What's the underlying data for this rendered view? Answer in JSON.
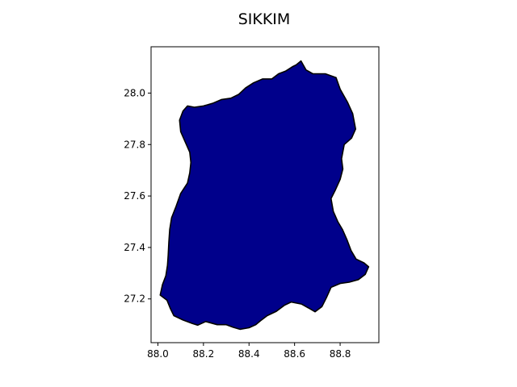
{
  "chart_data": {
    "type": "map",
    "title": "SIKKIM",
    "xlabel": "",
    "ylabel": "",
    "xlim": [
      87.97,
      88.97
    ],
    "ylim": [
      27.03,
      28.18
    ],
    "x_ticks": [
      88.0,
      88.2,
      88.4,
      88.6,
      88.8
    ],
    "x_tick_labels": [
      "88.0",
      "88.2",
      "88.4",
      "88.6",
      "88.8"
    ],
    "y_ticks": [
      27.2,
      27.4,
      27.6,
      27.8,
      28.0
    ],
    "y_tick_labels": [
      "27.2",
      "27.4",
      "27.6",
      "27.8",
      "28.0"
    ],
    "grid": false,
    "region": {
      "fill_color": "#00008b",
      "edge_color": "#000000",
      "boundary_lonlat": [
        [
          88.01,
          27.215
        ],
        [
          88.04,
          27.195
        ],
        [
          88.055,
          27.162
        ],
        [
          88.07,
          27.135
        ],
        [
          88.11,
          27.118
        ],
        [
          88.15,
          27.105
        ],
        [
          88.175,
          27.098
        ],
        [
          88.21,
          27.112
        ],
        [
          88.26,
          27.1
        ],
        [
          88.3,
          27.1
        ],
        [
          88.33,
          27.09
        ],
        [
          88.36,
          27.082
        ],
        [
          88.4,
          27.088
        ],
        [
          88.43,
          27.1
        ],
        [
          88.45,
          27.115
        ],
        [
          88.48,
          27.135
        ],
        [
          88.52,
          27.152
        ],
        [
          88.555,
          27.175
        ],
        [
          88.585,
          27.188
        ],
        [
          88.63,
          27.18
        ],
        [
          88.665,
          27.163
        ],
        [
          88.69,
          27.15
        ],
        [
          88.72,
          27.17
        ],
        [
          88.74,
          27.205
        ],
        [
          88.76,
          27.245
        ],
        [
          88.8,
          27.26
        ],
        [
          88.84,
          27.265
        ],
        [
          88.88,
          27.275
        ],
        [
          88.91,
          27.295
        ],
        [
          88.925,
          27.325
        ],
        [
          88.905,
          27.34
        ],
        [
          88.87,
          27.355
        ],
        [
          88.848,
          27.388
        ],
        [
          88.83,
          27.43
        ],
        [
          88.81,
          27.47
        ],
        [
          88.79,
          27.5
        ],
        [
          88.77,
          27.54
        ],
        [
          88.76,
          27.59
        ],
        [
          88.78,
          27.625
        ],
        [
          88.8,
          27.665
        ],
        [
          88.812,
          27.705
        ],
        [
          88.806,
          27.745
        ],
        [
          88.818,
          27.8
        ],
        [
          88.85,
          27.825
        ],
        [
          88.868,
          27.86
        ],
        [
          88.855,
          27.92
        ],
        [
          88.832,
          27.965
        ],
        [
          88.8,
          28.015
        ],
        [
          88.782,
          28.06
        ],
        [
          88.735,
          28.075
        ],
        [
          88.68,
          28.075
        ],
        [
          88.65,
          28.09
        ],
        [
          88.628,
          28.125
        ],
        [
          88.608,
          28.11
        ],
        [
          88.59,
          28.102
        ],
        [
          88.56,
          28.085
        ],
        [
          88.53,
          28.075
        ],
        [
          88.5,
          28.055
        ],
        [
          88.46,
          28.055
        ],
        [
          88.42,
          28.04
        ],
        [
          88.385,
          28.02
        ],
        [
          88.355,
          27.995
        ],
        [
          88.32,
          27.98
        ],
        [
          88.28,
          27.975
        ],
        [
          88.24,
          27.96
        ],
        [
          88.2,
          27.95
        ],
        [
          88.16,
          27.945
        ],
        [
          88.13,
          27.95
        ],
        [
          88.11,
          27.93
        ],
        [
          88.095,
          27.895
        ],
        [
          88.1,
          27.85
        ],
        [
          88.12,
          27.81
        ],
        [
          88.14,
          27.77
        ],
        [
          88.145,
          27.73
        ],
        [
          88.14,
          27.69
        ],
        [
          88.13,
          27.65
        ],
        [
          88.1,
          27.61
        ],
        [
          88.08,
          27.56
        ],
        [
          88.06,
          27.515
        ],
        [
          88.052,
          27.47
        ],
        [
          88.048,
          27.42
        ],
        [
          88.045,
          27.37
        ],
        [
          88.042,
          27.33
        ],
        [
          88.035,
          27.29
        ],
        [
          88.02,
          27.255
        ],
        [
          88.01,
          27.215
        ]
      ]
    }
  }
}
